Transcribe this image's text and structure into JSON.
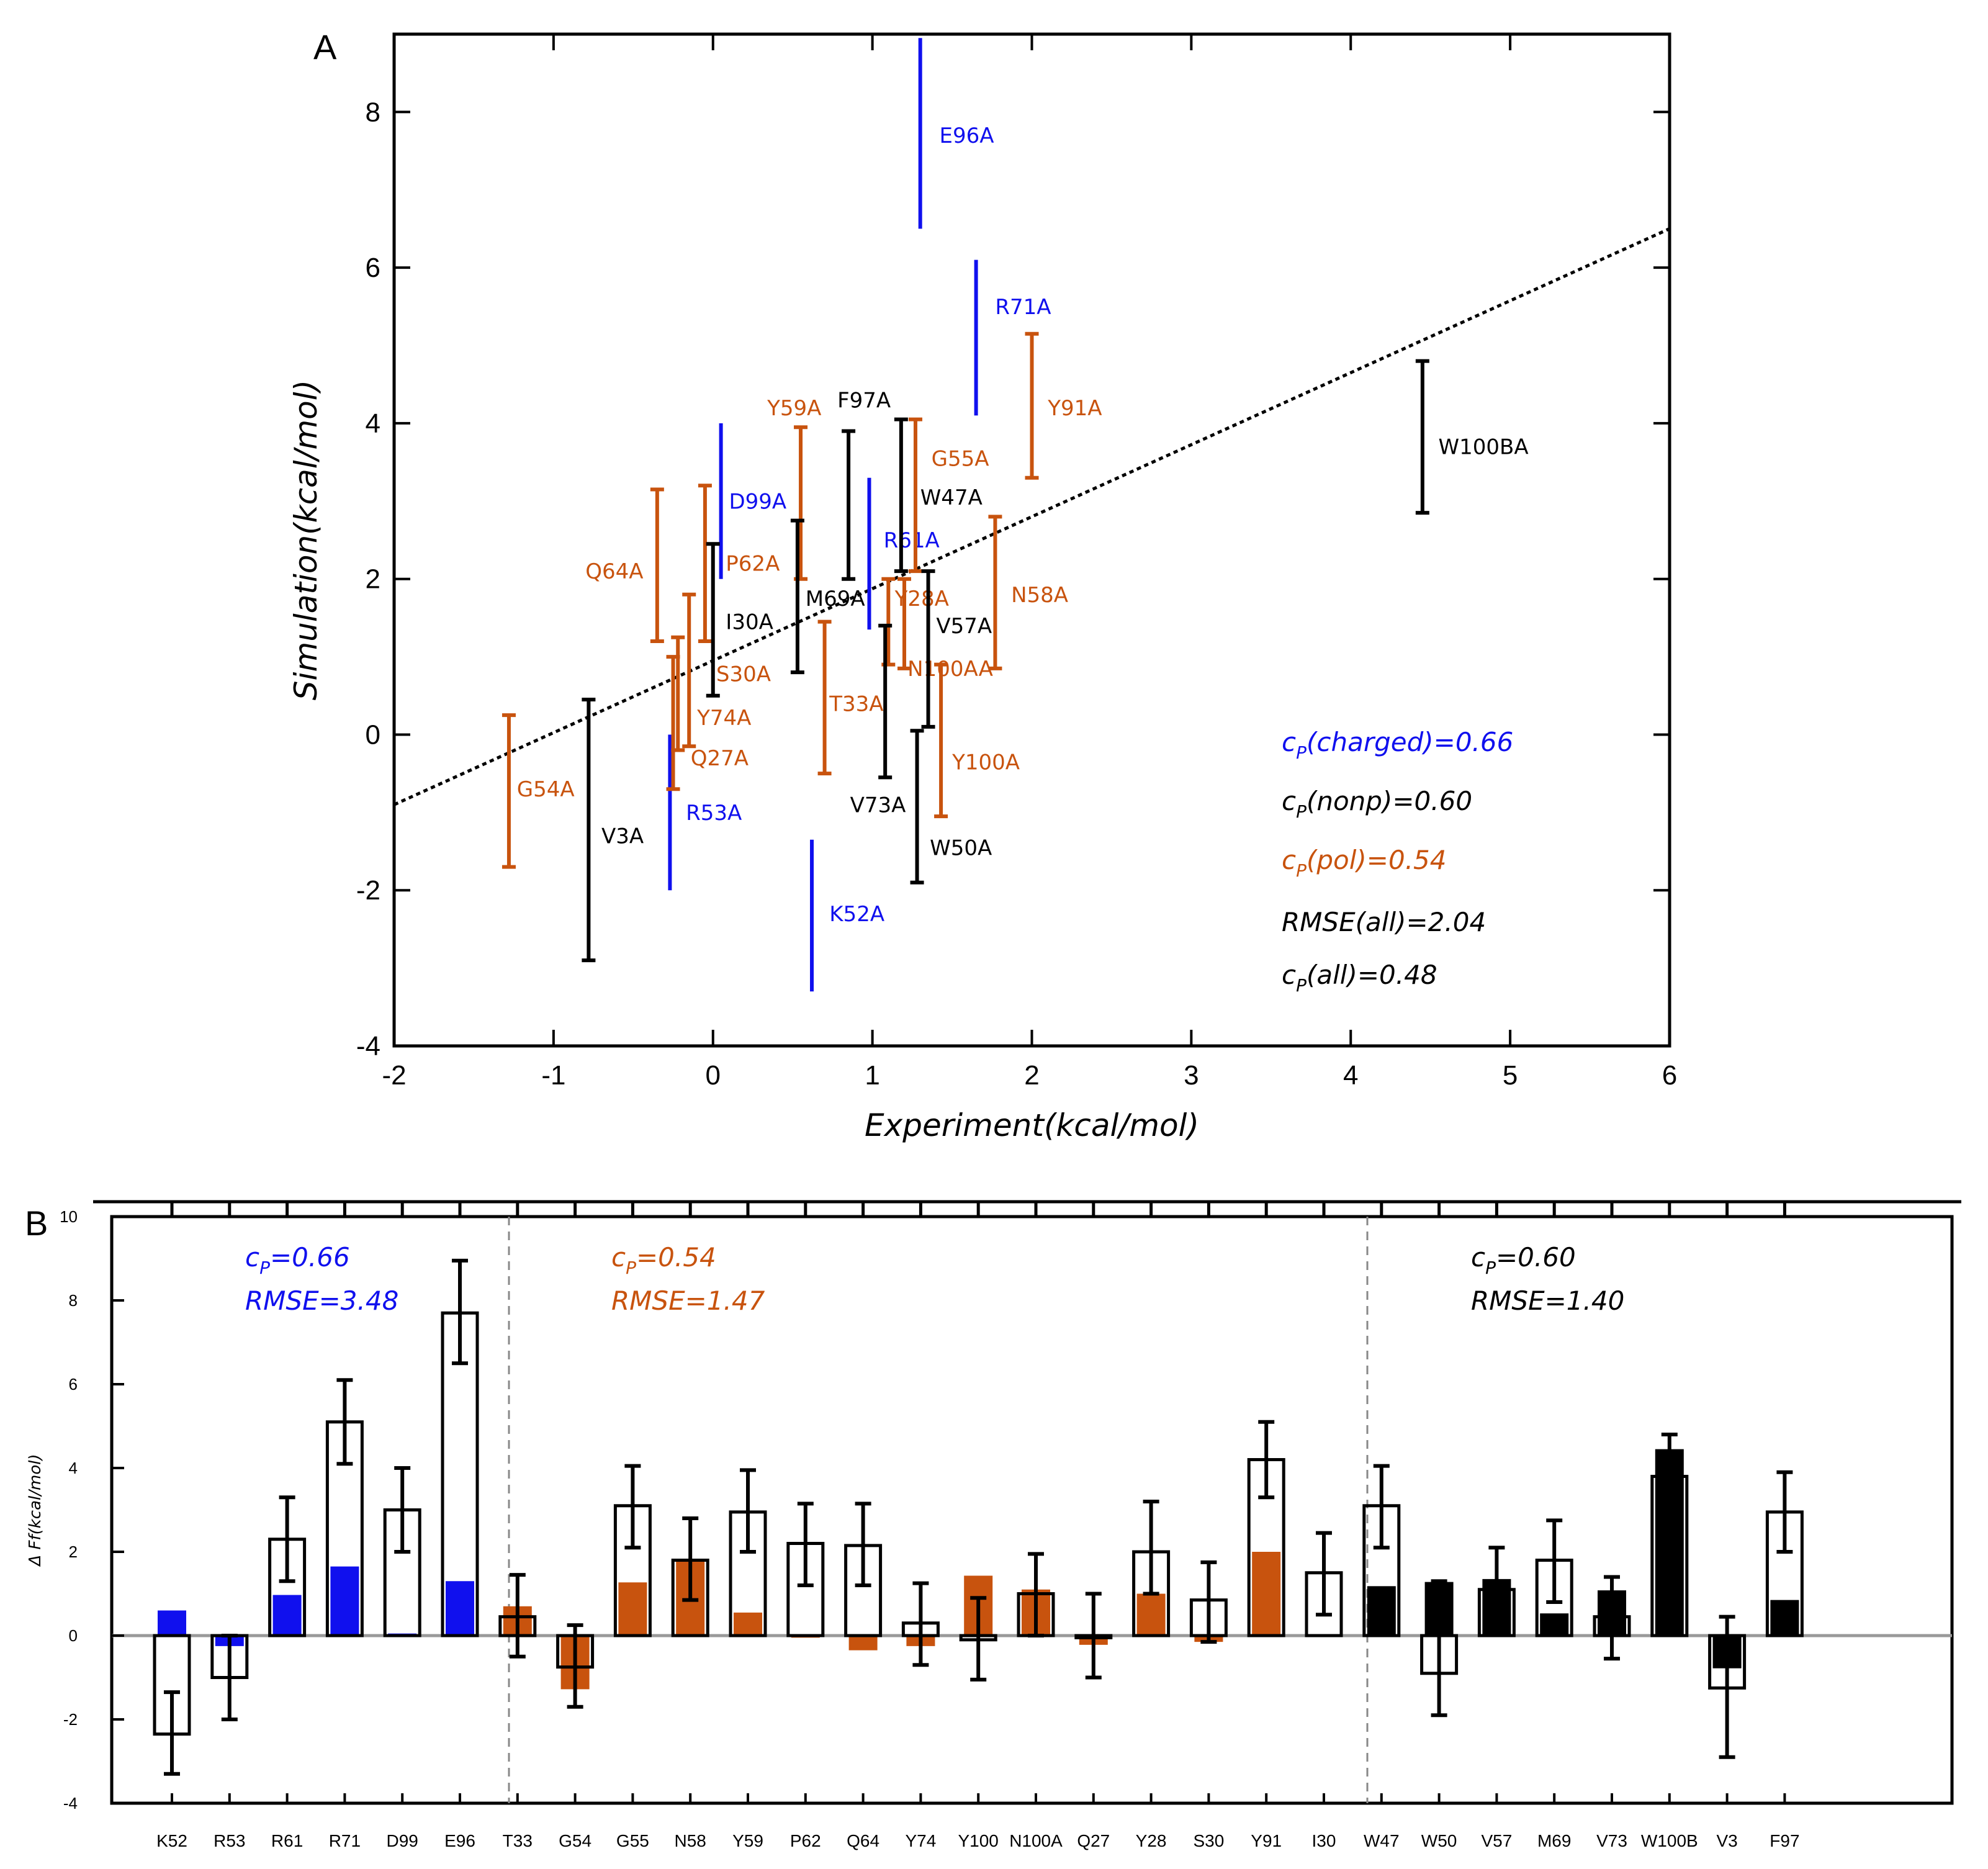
{
  "colors": {
    "charged": "#1010ee",
    "polar": "#c8530e",
    "nonpolar": "#000000"
  },
  "chart_data": [
    {
      "panel": "A",
      "type": "scatter",
      "xlabel": "Experiment(kcal/mol)",
      "ylabel": "Simulation(kcal/mol)",
      "xlim": [
        -2,
        6
      ],
      "ylim": [
        -4,
        9
      ],
      "xticks": [
        -2,
        -1,
        0,
        1,
        2,
        3,
        4,
        5,
        6
      ],
      "yticks": [
        -4,
        -2,
        0,
        2,
        4,
        6,
        8
      ],
      "fit_line": {
        "style": "dotted",
        "x": [
          -2,
          6
        ],
        "y": [
          -0.9,
          6.5
        ]
      },
      "annotations": [
        {
          "prefix": "c",
          "sub": "P",
          "text": "(charged)=0.66",
          "group": "charged"
        },
        {
          "prefix": "c",
          "sub": "P",
          "text": "(nonp)=0.60",
          "group": "nonpolar"
        },
        {
          "prefix": "c",
          "sub": "P",
          "text": "(pol)=0.54",
          "group": "polar"
        },
        {
          "prefix": "",
          "sub": "",
          "text": "RMSE(all)=2.04",
          "group": "nonpolar"
        },
        {
          "prefix": "c",
          "sub": "P",
          "text": "(all)=0.48",
          "group": "nonpolar"
        }
      ],
      "points": [
        {
          "label": "E96A",
          "group": "charged",
          "x": 1.3,
          "lo": 6.5,
          "hi": 8.95,
          "caps": false,
          "lx": 1.42,
          "ly": 7.7
        },
        {
          "label": "R71A",
          "group": "charged",
          "x": 1.65,
          "lo": 4.1,
          "hi": 6.1,
          "caps": false,
          "lx": 1.77,
          "ly": 5.5
        },
        {
          "label": "D99A",
          "group": "charged",
          "x": 0.05,
          "lo": 2.0,
          "hi": 4.0,
          "caps": false,
          "lx": 0.1,
          "ly": 3.0
        },
        {
          "label": "R61A",
          "group": "charged",
          "x": 0.98,
          "lo": 1.35,
          "hi": 3.3,
          "caps": false,
          "lx": 1.07,
          "ly": 2.5
        },
        {
          "label": "R53A",
          "group": "charged",
          "x": -0.27,
          "lo": -2.0,
          "hi": 0.0,
          "caps": false,
          "lx": -0.17,
          "ly": -1.0
        },
        {
          "label": "K52A",
          "group": "charged",
          "x": 0.62,
          "lo": -3.3,
          "hi": -1.35,
          "caps": false,
          "lx": 0.73,
          "ly": -2.3
        },
        {
          "label": "Y59A",
          "group": "polar",
          "x": 0.55,
          "lo": 2.0,
          "hi": 3.95,
          "caps": true,
          "lx": 0.34,
          "ly": 4.2
        },
        {
          "label": "Y91A",
          "group": "polar",
          "x": 2.0,
          "lo": 3.3,
          "hi": 5.15,
          "caps": true,
          "lx": 2.1,
          "ly": 4.2
        },
        {
          "label": "G55A",
          "group": "polar",
          "x": 1.27,
          "lo": 2.1,
          "hi": 4.05,
          "caps": true,
          "lx": 1.37,
          "ly": 3.55
        },
        {
          "label": "N58A",
          "group": "polar",
          "x": 1.77,
          "lo": 0.85,
          "hi": 2.8,
          "caps": true,
          "lx": 1.87,
          "ly": 1.8
        },
        {
          "label": "Q64A",
          "group": "polar",
          "x": -0.35,
          "lo": 1.2,
          "hi": 3.15,
          "caps": true,
          "lx": -0.8,
          "ly": 2.1
        },
        {
          "label": "P62A",
          "group": "polar",
          "x": -0.05,
          "lo": 1.2,
          "hi": 3.2,
          "caps": true,
          "lx": 0.08,
          "ly": 2.2
        },
        {
          "label": "S30A",
          "group": "polar",
          "x": -0.22,
          "lo": -0.2,
          "hi": 1.25,
          "caps": true,
          "lx": 0.02,
          "ly": 0.78
        },
        {
          "label": "Y74A",
          "group": "polar",
          "x": -0.25,
          "lo": -0.7,
          "hi": 1.0,
          "caps": true,
          "lx": -0.1,
          "ly": 0.22
        },
        {
          "label": "Q27A",
          "group": "polar",
          "x": -0.15,
          "lo": -0.15,
          "hi": 1.8,
          "caps": true,
          "lx": -0.14,
          "ly": -0.3
        },
        {
          "label": "T33A",
          "group": "polar",
          "x": 0.7,
          "lo": -0.5,
          "hi": 1.45,
          "caps": true,
          "lx": 0.73,
          "ly": 0.4
        },
        {
          "label": "Y28A",
          "group": "polar",
          "x": 1.1,
          "lo": 0.9,
          "hi": 2.0,
          "caps": true,
          "lx": 1.14,
          "ly": 1.75
        },
        {
          "label": "N100AA",
          "group": "polar",
          "x": 1.2,
          "lo": 0.85,
          "hi": 2.0,
          "caps": true,
          "lx": 1.22,
          "ly": 0.85
        },
        {
          "label": "Y100A",
          "group": "polar",
          "x": 1.43,
          "lo": -1.05,
          "hi": 0.9,
          "caps": true,
          "lx": 1.5,
          "ly": -0.35
        },
        {
          "label": "G54A",
          "group": "polar",
          "x": -1.28,
          "lo": -1.7,
          "hi": 0.25,
          "caps": true,
          "lx": -1.23,
          "ly": -0.7
        },
        {
          "label": "F97A",
          "group": "nonpolar",
          "x": 0.85,
          "lo": 2.0,
          "hi": 3.9,
          "caps": true,
          "lx": 0.78,
          "ly": 4.3
        },
        {
          "label": "W47A",
          "group": "nonpolar",
          "x": 1.18,
          "lo": 2.1,
          "hi": 4.05,
          "caps": true,
          "lx": 1.3,
          "ly": 3.05
        },
        {
          "label": "M69A",
          "group": "nonpolar",
          "x": 0.53,
          "lo": 0.8,
          "hi": 2.75,
          "caps": true,
          "lx": 0.58,
          "ly": 1.75
        },
        {
          "label": "I30A",
          "group": "nonpolar",
          "x": 0.0,
          "lo": 0.5,
          "hi": 2.45,
          "caps": true,
          "lx": 0.08,
          "ly": 1.45
        },
        {
          "label": "V57A",
          "group": "nonpolar",
          "x": 1.35,
          "lo": 0.1,
          "hi": 2.1,
          "caps": true,
          "lx": 1.4,
          "ly": 1.4
        },
        {
          "label": "V73A",
          "group": "nonpolar",
          "x": 1.08,
          "lo": -0.55,
          "hi": 1.4,
          "caps": true,
          "lx": 0.86,
          "ly": -0.9
        },
        {
          "label": "W50A",
          "group": "nonpolar",
          "x": 1.28,
          "lo": -1.9,
          "hi": 0.05,
          "caps": true,
          "lx": 1.36,
          "ly": -1.45
        },
        {
          "label": "V3A",
          "group": "nonpolar",
          "x": -0.78,
          "lo": -2.9,
          "hi": 0.45,
          "caps": true,
          "lx": -0.7,
          "ly": -1.3
        },
        {
          "label": "W100BA",
          "group": "nonpolar",
          "x": 4.45,
          "lo": 2.85,
          "hi": 4.8,
          "caps": true,
          "lx": 4.55,
          "ly": 3.7
        }
      ]
    },
    {
      "panel": "B",
      "type": "bar",
      "ylabel": "Δ Ff(kcal/mol)",
      "ylim": [
        -4,
        10
      ],
      "yticks": [
        -4,
        -2,
        0,
        2,
        4,
        6,
        8,
        10
      ],
      "groups": [
        {
          "cp_prefix": "c",
          "cp_sub": "P",
          "cp_text": "=0.66",
          "rmse": "RMSE=3.48",
          "color_key": "charged"
        },
        {
          "cp_prefix": "c",
          "cp_sub": "P",
          "cp_text": "=0.54",
          "rmse": "RMSE=1.47",
          "color_key": "polar"
        },
        {
          "cp_prefix": "c",
          "cp_sub": "P",
          "cp_text": "=0.60",
          "rmse": "RMSE=1.40",
          "color_key": "nonpolar"
        }
      ],
      "categories": [
        "K52",
        "R53",
        "R61",
        "R71",
        "D99",
        "E96",
        "T33",
        "G54",
        "G55",
        "N58",
        "Y59",
        "P62",
        "Q64",
        "Y74",
        "Y100",
        "N100A",
        "Q27",
        "Y28",
        "S30",
        "Y91",
        "I30",
        "W47",
        "W50",
        "V57",
        "M69",
        "V73",
        "W100B",
        "V3",
        "F97"
      ],
      "category_groups": [
        "charged",
        "charged",
        "charged",
        "charged",
        "charged",
        "charged",
        "polar",
        "polar",
        "polar",
        "polar",
        "polar",
        "polar",
        "polar",
        "polar",
        "polar",
        "polar",
        "polar",
        "polar",
        "polar",
        "polar",
        "nonpolar",
        "nonpolar",
        "nonpolar",
        "nonpolar",
        "nonpolar",
        "nonpolar",
        "nonpolar",
        "nonpolar",
        "nonpolar"
      ],
      "series": [
        {
          "name": "Experiment",
          "style": "filled",
          "values": [
            0.6,
            -0.25,
            0.97,
            1.65,
            0.05,
            1.3,
            0.7,
            -1.28,
            1.27,
            1.77,
            0.55,
            -0.05,
            -0.35,
            -0.25,
            1.43,
            1.1,
            -0.22,
            1.0,
            -0.15,
            2.0,
            0.0,
            1.18,
            1.28,
            1.35,
            0.53,
            1.08,
            4.45,
            -0.78,
            0.85
          ]
        },
        {
          "name": "Simulation",
          "style": "open",
          "values": [
            -2.35,
            -1.0,
            2.3,
            5.1,
            3.0,
            7.7,
            0.45,
            -0.75,
            3.1,
            1.8,
            2.95,
            2.2,
            2.15,
            0.3,
            -0.1,
            1.0,
            -0.05,
            2.0,
            0.85,
            4.2,
            1.5,
            3.1,
            -0.9,
            1.1,
            1.8,
            0.45,
            3.8,
            -1.25,
            2.95
          ]
        },
        {
          "name": "Error",
          "style": "errorbar",
          "lo": [
            -3.3,
            -2.0,
            1.3,
            4.1,
            2.0,
            6.5,
            -0.5,
            -1.7,
            2.1,
            0.85,
            2.0,
            1.2,
            1.2,
            -0.7,
            -1.05,
            0.0,
            -1.0,
            1.0,
            -0.15,
            3.3,
            0.5,
            2.1,
            -1.9,
            0.1,
            0.8,
            -0.55,
            2.85,
            -2.9,
            2.0
          ],
          "hi": [
            -1.35,
            0.0,
            3.3,
            6.1,
            4.0,
            8.95,
            1.45,
            0.25,
            4.05,
            2.8,
            3.95,
            3.15,
            3.15,
            1.25,
            0.9,
            1.95,
            1.0,
            3.2,
            1.75,
            5.1,
            2.45,
            4.05,
            1.3,
            2.1,
            2.75,
            1.4,
            4.8,
            0.45,
            3.9
          ]
        }
      ]
    }
  ]
}
